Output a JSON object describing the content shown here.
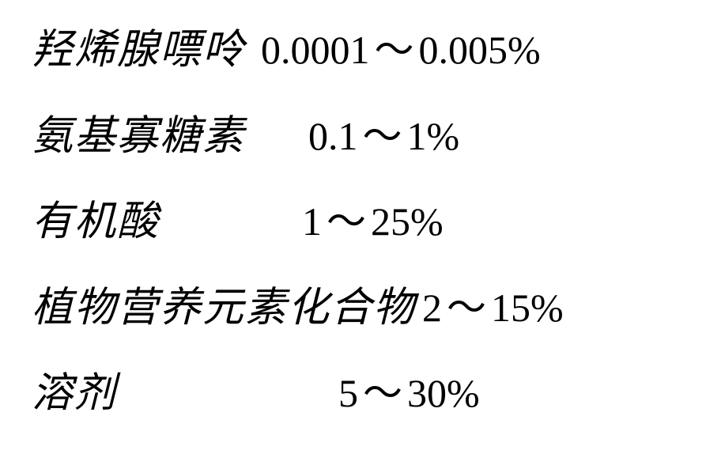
{
  "rows": [
    {
      "label": "羟烯腺嘌呤",
      "value_start": "0.0001",
      "value_end": "0.005%"
    },
    {
      "label": "氨基寡糖素",
      "value_start": "0.1",
      "value_end": "1%"
    },
    {
      "label": "有机酸",
      "value_start": "1",
      "value_end": "25%"
    },
    {
      "label": "植物营养元素化合物",
      "value_start": "2",
      "value_end": "15%"
    },
    {
      "label": "溶剂",
      "value_start": "5",
      "value_end": "30%"
    }
  ],
  "styling": {
    "background_color": "#ffffff",
    "text_color": "#000000",
    "label_font": "KaiTi",
    "label_fontsize": 52,
    "value_font": "Times New Roman",
    "value_fontsize": 50,
    "tilde_char": "～"
  }
}
